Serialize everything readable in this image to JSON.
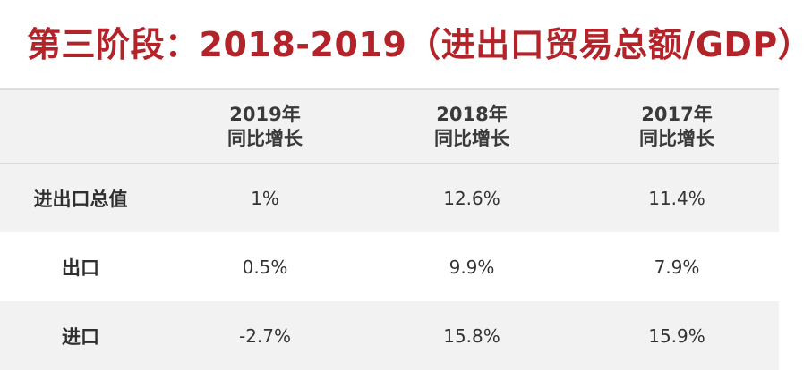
{
  "title": "第三阶段：2018-2019（进出口贸易总额/GDP）",
  "table": {
    "headers": [
      {
        "line1": "",
        "line2": ""
      },
      {
        "line1": "2019年",
        "line2": "同比增长"
      },
      {
        "line1": "2018年",
        "line2": "同比增长"
      },
      {
        "line1": "2017年",
        "line2": "同比增长"
      }
    ],
    "rows": [
      {
        "label": "进出口总值",
        "values": [
          "1%",
          "12.6%",
          "11.4%"
        ]
      },
      {
        "label": "出口",
        "values": [
          "0.5%",
          "9.9%",
          "7.9%"
        ]
      },
      {
        "label": "进口",
        "values": [
          "-2.7%",
          "15.8%",
          "15.9%"
        ]
      }
    ]
  },
  "colors": {
    "title": "#b3242a",
    "shaded_row": "#f2f2f2",
    "rule": "#dcdcdc"
  }
}
